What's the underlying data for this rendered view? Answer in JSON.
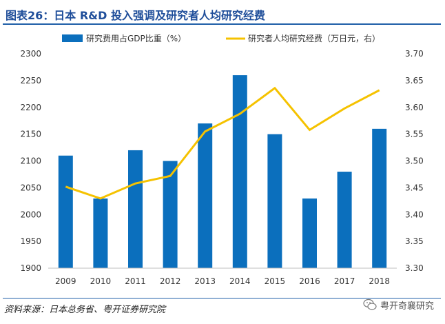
{
  "header": {
    "title": "图表26：日本 R&D 投入强调及研究者人均研究经费"
  },
  "footer": {
    "source": "资料来源：日本总务省、粤开证券研究院",
    "watermark": "粤开奇襄研究"
  },
  "colors": {
    "bar": "#0b6fbd",
    "line": "#f5c200",
    "title": "#1f4e9a"
  },
  "chart_data": {
    "type": "bar",
    "categories": [
      "2009",
      "2010",
      "2011",
      "2012",
      "2013",
      "2014",
      "2015",
      "2016",
      "2017",
      "2018"
    ],
    "series": [
      {
        "name": "研究费用占GDP比重（%）",
        "type": "bar",
        "axis": "left",
        "values": [
          2110,
          2030,
          2120,
          2100,
          2170,
          2260,
          2150,
          2030,
          2080,
          2160
        ]
      },
      {
        "name": "研究者人均研究经费（万日元，右）",
        "type": "line",
        "axis": "right",
        "values": [
          3.452,
          3.43,
          3.458,
          3.472,
          3.555,
          3.588,
          3.636,
          3.558,
          3.598,
          3.632
        ]
      }
    ],
    "left_axis": {
      "ylim": [
        1900,
        2300
      ],
      "ticks": [
        "1900",
        "1950",
        "2000",
        "2050",
        "2100",
        "2150",
        "2200",
        "2250",
        "2300"
      ]
    },
    "right_axis": {
      "ylim": [
        3.3,
        3.7
      ],
      "ticks": [
        "3.30",
        "3.35",
        "3.40",
        "3.45",
        "3.50",
        "3.55",
        "3.60",
        "3.65",
        "3.70"
      ]
    },
    "legend_position": "top",
    "grid": false
  }
}
